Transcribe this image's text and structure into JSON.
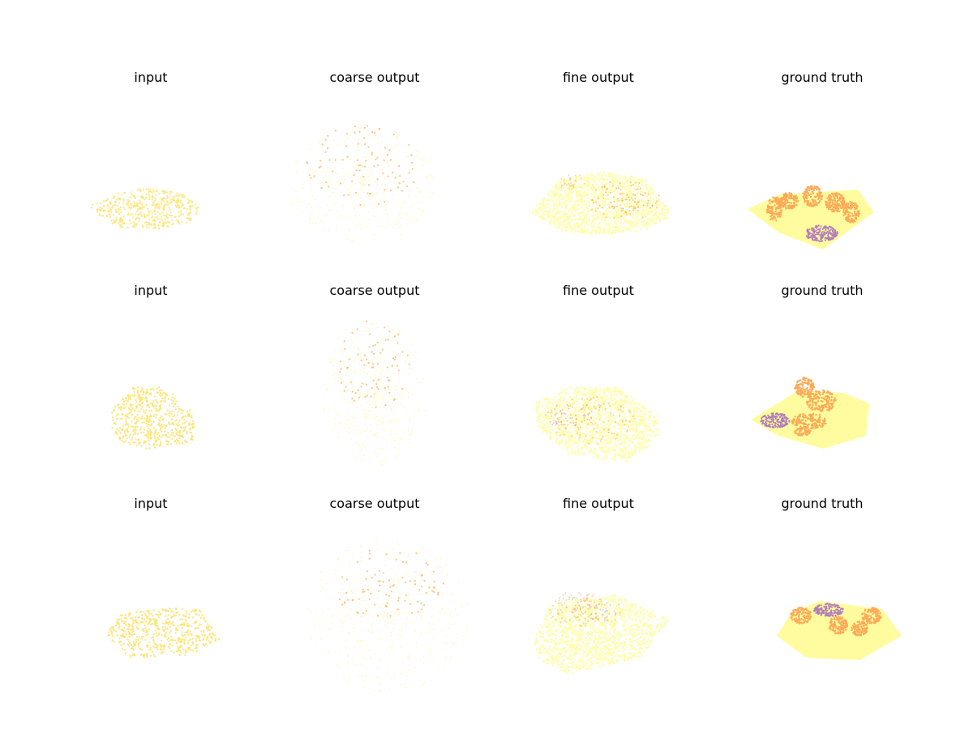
{
  "chart_data": {
    "type": "scatter",
    "rows": [
      {
        "columns": [
          {
            "title": "input"
          },
          {
            "title": "coarse output"
          },
          {
            "title": "fine output"
          },
          {
            "title": "ground truth"
          }
        ]
      },
      {
        "columns": [
          {
            "title": "input"
          },
          {
            "title": "coarse output"
          },
          {
            "title": "fine output"
          },
          {
            "title": "ground truth"
          }
        ]
      },
      {
        "columns": [
          {
            "title": "input"
          },
          {
            "title": "coarse output"
          },
          {
            "title": "fine output"
          },
          {
            "title": "ground truth"
          }
        ]
      }
    ],
    "colors": {
      "input_points": "#fde36a",
      "surface": "#fffca0",
      "object": "#fdaa58",
      "highlight": "#b07ab8",
      "faint": "#fff7b0"
    },
    "axes": "off",
    "grid": false
  }
}
